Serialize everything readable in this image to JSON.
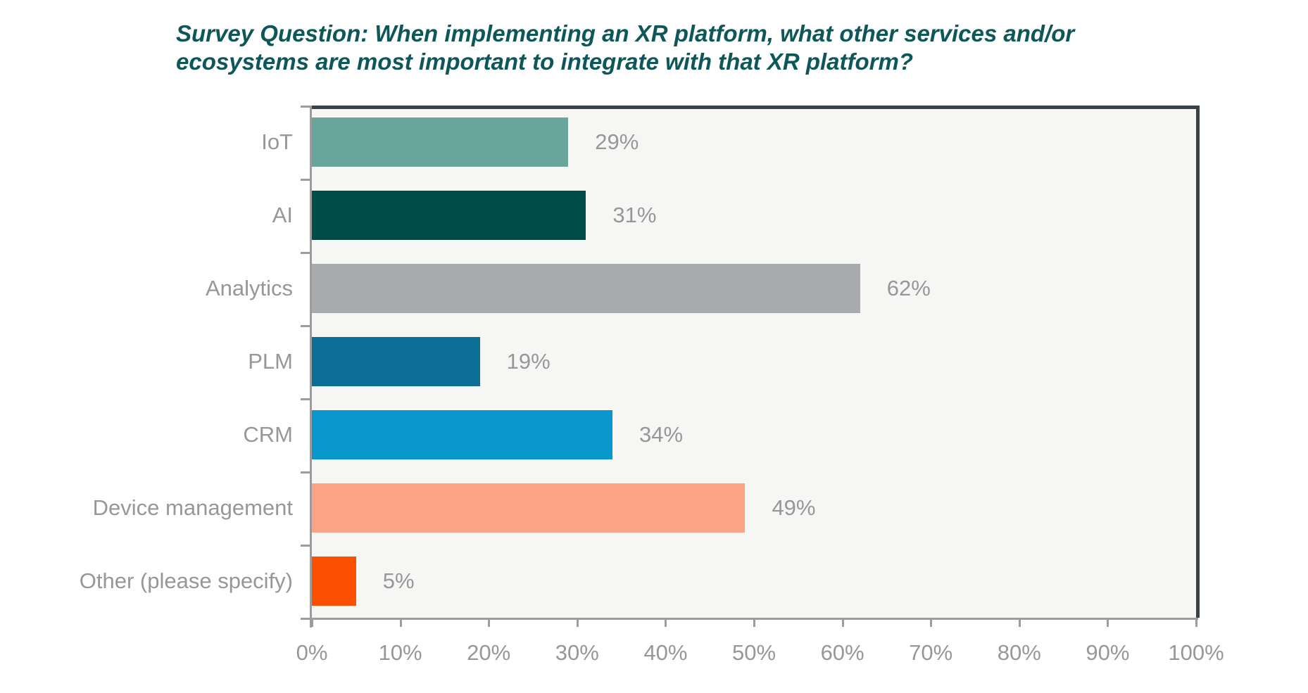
{
  "chart": {
    "title_line1": "Survey Question: When implementing an XR platform, what other services and/or",
    "title_line2": "ecosystems are most important to integrate with that XR platform?"
  },
  "chart_data": {
    "type": "bar",
    "orientation": "horizontal",
    "title": "Survey Question: When implementing an XR platform, what other services and/or ecosystems are most important to integrate with that XR platform?",
    "categories": [
      "IoT",
      "AI",
      "Analytics",
      "PLM",
      "CRM",
      "Device management",
      "Other (please specify)"
    ],
    "values": [
      29,
      31,
      62,
      19,
      34,
      49,
      5
    ],
    "value_labels": [
      "29%",
      "31%",
      "62%",
      "19%",
      "34%",
      "49%",
      "5%"
    ],
    "bar_colors": [
      "#69a49d",
      "#004c46",
      "#a7abae",
      "#0c6d96",
      "#0a97ce",
      "#fca287",
      "#fa5000"
    ],
    "x_ticks": [
      "0%",
      "10%",
      "20%",
      "30%",
      "40%",
      "50%",
      "60%",
      "70%",
      "80%",
      "90%",
      "100%"
    ],
    "xlim": [
      0,
      100
    ],
    "xlabel": "",
    "ylabel": "",
    "grid": false,
    "legend": false,
    "colors": {
      "title": "#0e5759",
      "plot_background": "#f6f6f5",
      "outer_background": "#ffffff",
      "dark_border": "#3a4147",
      "axis": "#9c9c9c",
      "labels": "#979797"
    }
  }
}
